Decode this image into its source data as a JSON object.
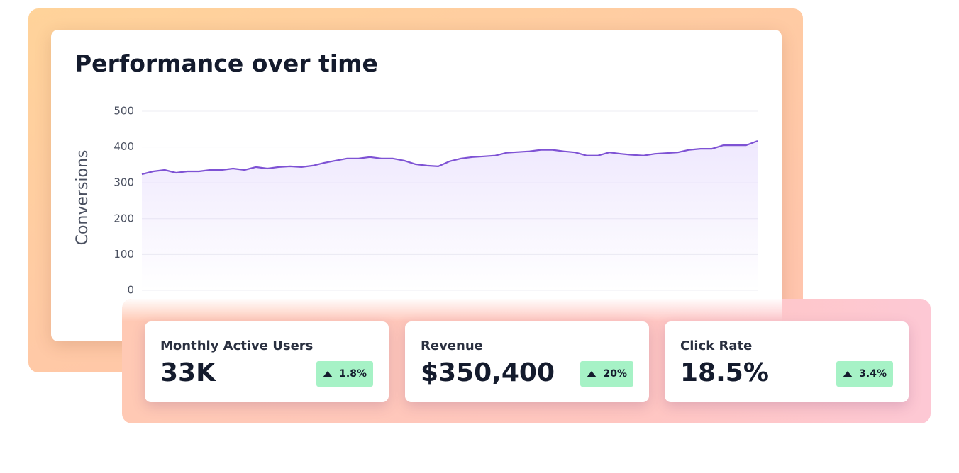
{
  "chart_data": {
    "type": "line",
    "title": "Performance over time",
    "y_label": "Conversions",
    "ylim": [
      0,
      500
    ],
    "yticks": [
      0,
      100,
      200,
      300,
      400,
      500
    ],
    "grid": true,
    "color": "#7e52d4",
    "values": [
      324,
      332,
      336,
      328,
      332,
      332,
      336,
      336,
      340,
      336,
      344,
      340,
      344,
      346,
      344,
      348,
      356,
      362,
      368,
      368,
      372,
      368,
      368,
      362,
      352,
      348,
      346,
      360,
      368,
      372,
      374,
      376,
      384,
      386,
      388,
      392,
      392,
      388,
      385,
      376,
      376,
      385,
      381,
      378,
      376,
      381,
      383,
      385,
      392,
      395,
      395,
      405,
      405,
      405,
      417
    ]
  },
  "cards": [
    {
      "label": "Monthly Active Users",
      "value": "33K",
      "change": "1.8%"
    },
    {
      "label": "Revenue",
      "value": "$350,400",
      "change": "20%"
    },
    {
      "label": "Click Rate",
      "value": "18.5%",
      "change": "3.4%"
    }
  ]
}
